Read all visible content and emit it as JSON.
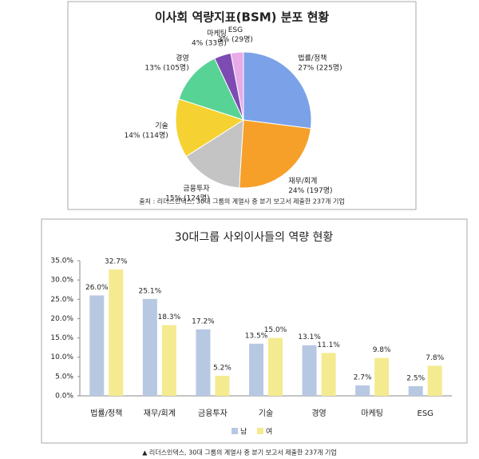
{
  "chart_data": [
    {
      "type": "pie",
      "title": "이사회 역량지표(BSM) 분포 현황",
      "categories": [
        "법률/정책",
        "재무/회계",
        "금융투자",
        "기술",
        "경영",
        "마케팅",
        "ESG"
      ],
      "values": [
        27,
        24,
        15,
        14,
        13,
        4,
        3
      ],
      "value_labels": [
        "27% (225명)",
        "24% (197명)",
        "15% (124명)",
        "14% (114명)",
        "13% (105명)",
        "4% (33명)",
        "3% (29명)"
      ],
      "colors": [
        "#7ba1e8",
        "#f6a02a",
        "#c4c4c4",
        "#f5d232",
        "#58d396",
        "#7d4bb2",
        "#e9aae9"
      ],
      "source": "출처 : 리더스인덱스, 30대 그룹의 계열사 중 분기 보고서 제출한 237개 기업"
    },
    {
      "type": "bar",
      "title": "30대그룹 사외이사들의 역량 현황",
      "categories": [
        "법률/정책",
        "재무/회계",
        "금융투자",
        "기술",
        "경영",
        "마케팅",
        "ESG"
      ],
      "series": [
        {
          "name": "남",
          "color": "#b7c8e2",
          "values": [
            26.0,
            25.1,
            17.2,
            13.5,
            13.1,
            2.7,
            2.5
          ],
          "value_labels": [
            "26.0%",
            "25.1%",
            "17.2%",
            "13.5%",
            "13.1%",
            "2.7%",
            "2.5%"
          ]
        },
        {
          "name": "여",
          "color": "#f4ea90",
          "values": [
            32.7,
            18.3,
            5.2,
            15.0,
            11.1,
            9.8,
            7.8
          ],
          "value_labels": [
            "32.7%",
            "18.3%",
            "5.2%",
            "15.0%",
            "11.1%",
            "9.8%",
            "7.8%"
          ]
        }
      ],
      "ylim": [
        0,
        35
      ],
      "yticks": [
        {
          "value": 0,
          "label": "0.0%"
        },
        {
          "value": 5,
          "label": "5.0%"
        },
        {
          "value": 10,
          "label": "10.0%"
        },
        {
          "value": 15,
          "label": "15.0%"
        },
        {
          "value": 20,
          "label": "20.0%"
        },
        {
          "value": 25,
          "label": "25.0%"
        },
        {
          "value": 30,
          "label": "30.0%"
        },
        {
          "value": 35,
          "label": "35.0%"
        }
      ],
      "legend": "bottom",
      "source": "▲ 리더스인덱스, 30대 그룹의 계열사 중 분기 보고서 제출한 237개 기업"
    }
  ]
}
